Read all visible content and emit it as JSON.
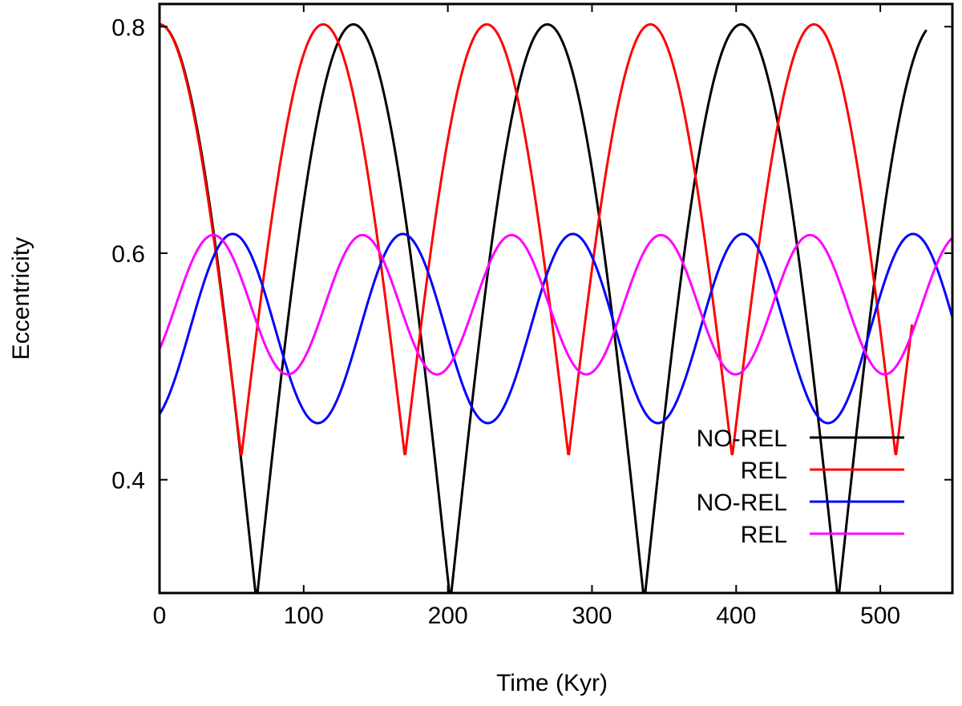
{
  "chart_data": {
    "type": "line",
    "title": "",
    "xlabel": "Time (Kyr)",
    "ylabel": "Eccentricity",
    "xlim": [
      0,
      550
    ],
    "ylim": [
      0.3,
      0.82
    ],
    "xticks": [
      0,
      100,
      200,
      300,
      400,
      500
    ],
    "xtick_labels": [
      "0",
      "100",
      "200",
      "300",
      "400",
      "500"
    ],
    "yticks": [
      0.4,
      0.6,
      0.8
    ],
    "ytick_labels": [
      "0.4",
      "0.6",
      "0.8"
    ],
    "grid": false,
    "legend_position": "lower-right",
    "series": [
      {
        "name": "NO-REL",
        "color": "#000000",
        "x_end": 532,
        "model": {
          "max": 0.802,
          "min": 0.292,
          "period": 134.5,
          "phase": 0,
          "shape": "cusp"
        }
      },
      {
        "name": "REL",
        "color": "#ff0000",
        "x_end": 522,
        "model": {
          "max": 0.802,
          "min": 0.42,
          "period": 113.5,
          "phase": 0,
          "shape": "cusp"
        }
      },
      {
        "name": "NO-REL",
        "color": "#0000ff",
        "x_end": 550,
        "model": {
          "max": 0.617,
          "min": 0.45,
          "period": 118,
          "phase": -0.43,
          "shape": "sine"
        }
      },
      {
        "name": "REL",
        "color": "#ff00ff",
        "x_end": 550,
        "model": {
          "max": 0.616,
          "min": 0.493,
          "period": 103.5,
          "phase": -0.36,
          "shape": "sine"
        }
      }
    ]
  }
}
